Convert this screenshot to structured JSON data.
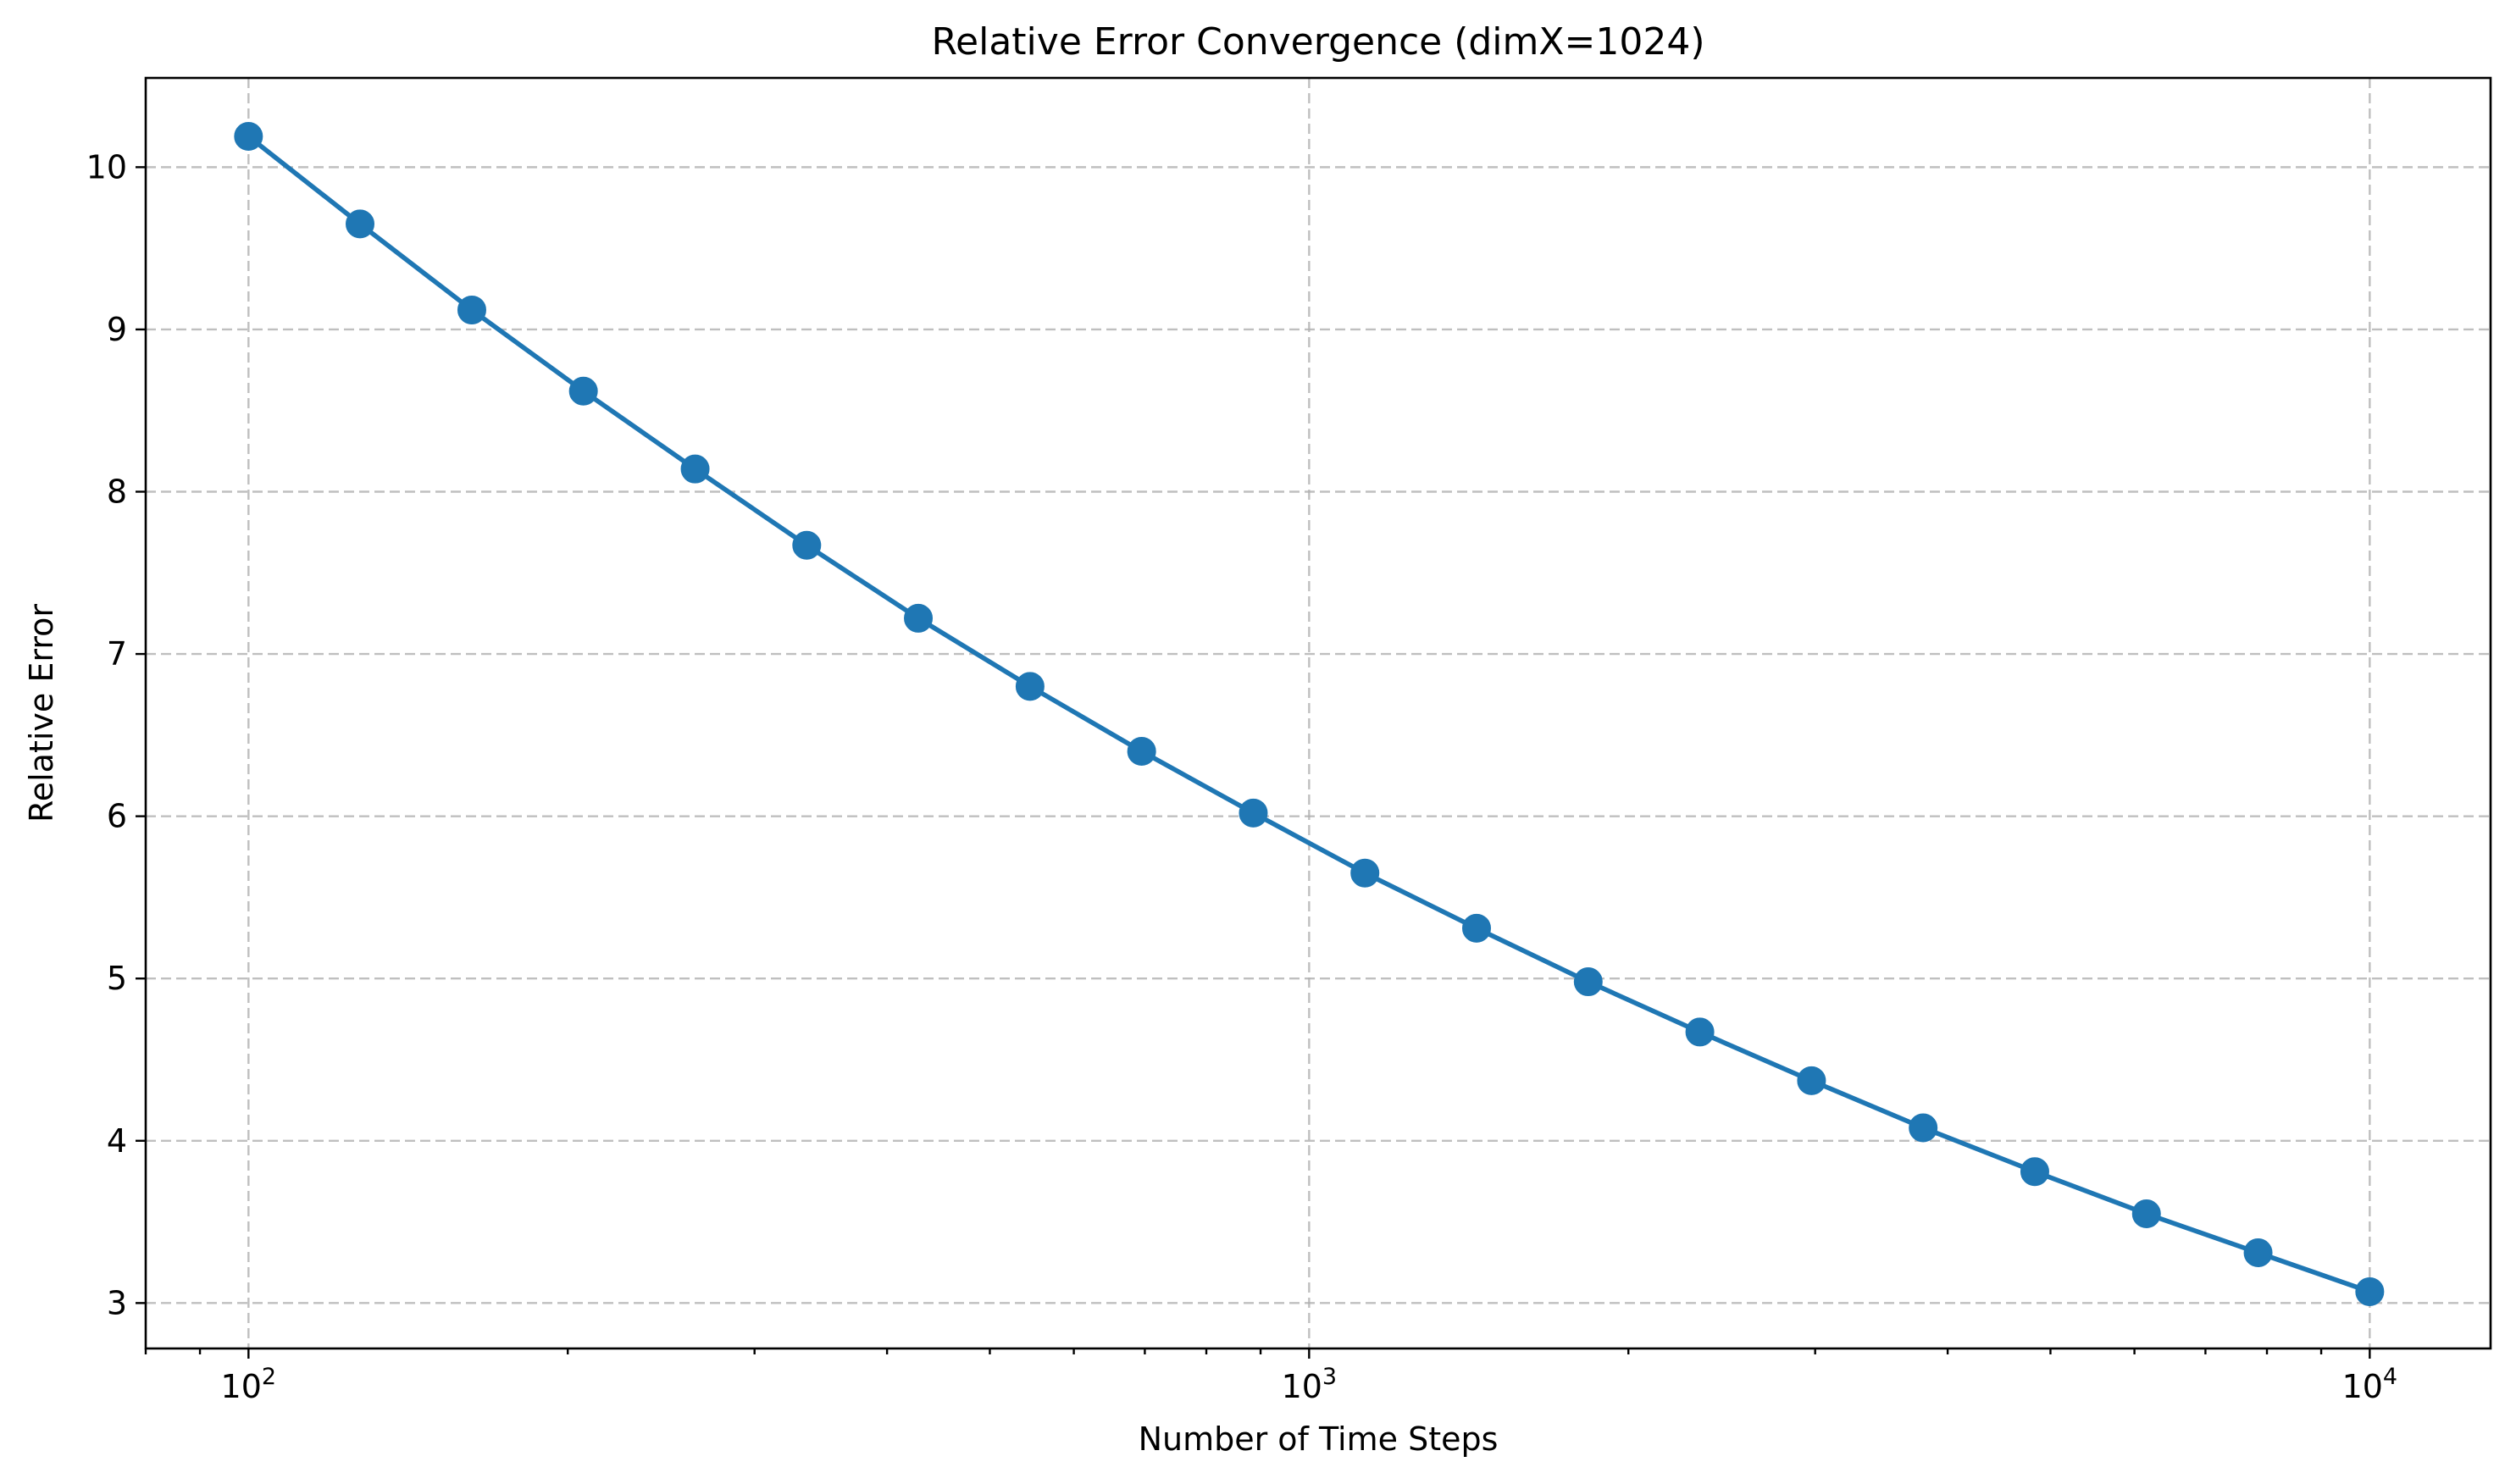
{
  "chart_data": {
    "type": "line",
    "title": "Relative Error Convergence (dimX=1024)",
    "xlabel": "Number of Time Steps",
    "ylabel": "Relative Error",
    "xscale": "log",
    "xlim": [
      80,
      13000
    ],
    "ylim": [
      2.72,
      10.55
    ],
    "grid": true,
    "x_major_ticks": [
      {
        "value": 100,
        "base": "10",
        "exp": "2"
      },
      {
        "value": 1000,
        "base": "10",
        "exp": "3"
      },
      {
        "value": 10000,
        "base": "10",
        "exp": "4"
      }
    ],
    "y_ticks": [
      3,
      4,
      5,
      6,
      7,
      8,
      9,
      10
    ],
    "series": [
      {
        "color": "#1f77b4",
        "marker": "circle",
        "x": [
          100,
          127.4,
          162.4,
          206.9,
          263.7,
          336.0,
          428.1,
          545.6,
          695.2,
          885.9,
          1128.8,
          1438.4,
          1832.98,
          2335.7,
          2976.4,
          3792.7,
          4832.9,
          6158.5,
          7847.6,
          10000
        ],
        "y": [
          10.19,
          9.65,
          9.12,
          8.62,
          8.14,
          7.67,
          7.22,
          6.8,
          6.4,
          6.02,
          5.65,
          5.31,
          4.98,
          4.67,
          4.37,
          4.08,
          3.81,
          3.55,
          3.31,
          3.07
        ]
      }
    ]
  }
}
